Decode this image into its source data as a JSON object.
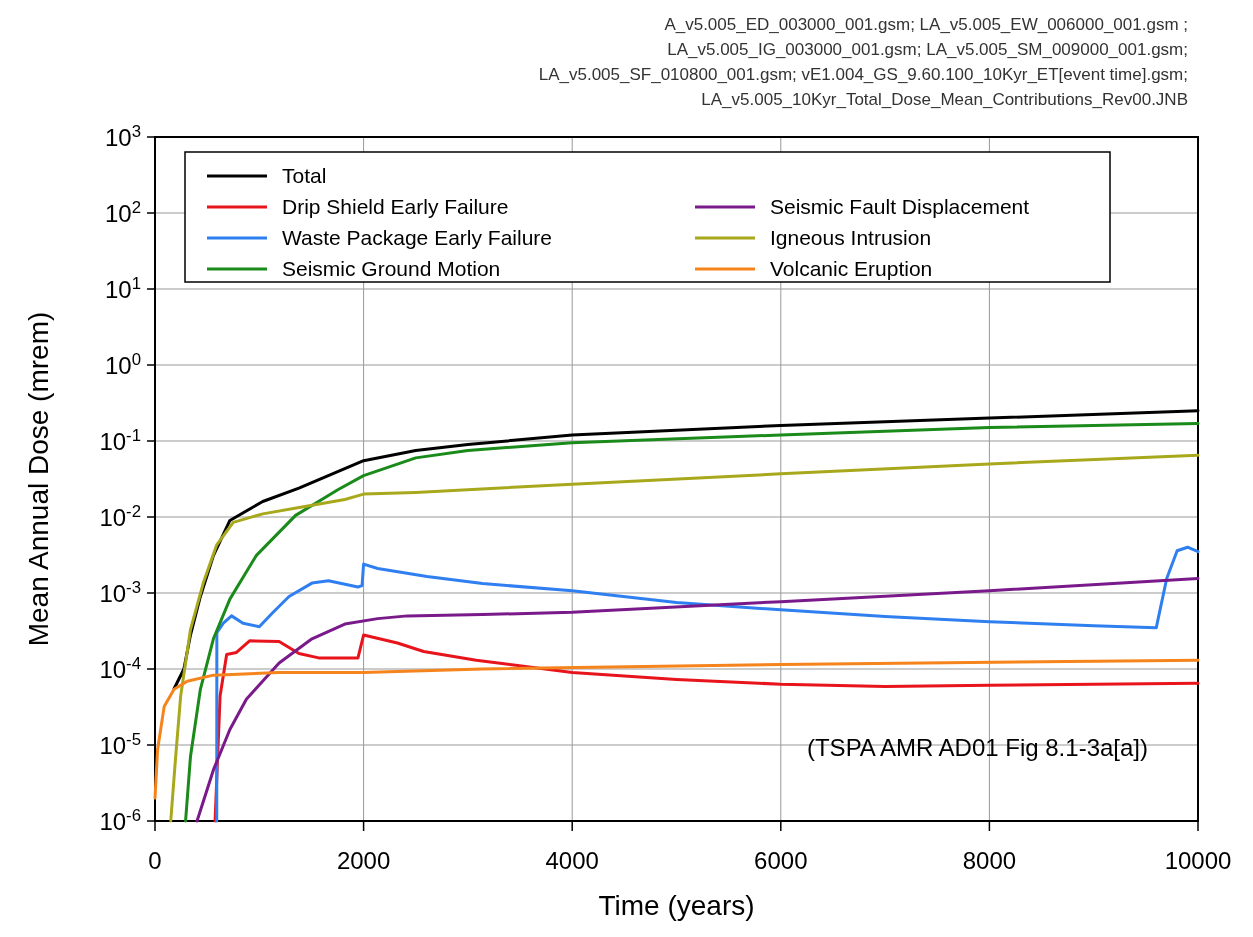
{
  "chart_data": {
    "type": "line",
    "xlabel": "Time (years)",
    "ylabel": "Mean Annual Dose (mrem)",
    "annotations": [
      "A_v5.005_ED_003000_001.gsm; LA_v5.005_EW_006000_001.gsm ;",
      "LA_v5.005_IG_003000_001.gsm; LA_v5.005_SM_009000_001.gsm;",
      "LA_v5.005_SF_010800_001.gsm; vE1.004_GS_9.60.100_10Kyr_ET[event time].gsm;",
      "LA_v5.005_10Kyr_Total_Dose_Mean_Contributions_Rev00.JNB",
      "(TSPA AMR AD01 Fig 8.1-3a[a])"
    ],
    "xlim": [
      0,
      10000
    ],
    "xticks": [
      0,
      2000,
      4000,
      6000,
      8000,
      10000
    ],
    "ylim": [
      1e-06,
      1000
    ],
    "log": true,
    "yticks": [
      {
        "value": 1e-06,
        "label": "10$^{-6}$"
      },
      {
        "value": 1e-05,
        "label": "10$^{-5}$"
      },
      {
        "value": 0.0001,
        "label": "10$^{-4}$"
      },
      {
        "value": 0.001,
        "label": "10$^{-3}$"
      },
      {
        "value": 0.01,
        "label": "10$^{-2}$"
      },
      {
        "value": 0.1,
        "label": "10$^{-1}$"
      },
      {
        "value": 1,
        "label": "10$^{0}$"
      },
      {
        "value": 10,
        "label": "10$^{1}$"
      },
      {
        "value": 100,
        "label": "10$^{2}$"
      },
      {
        "value": 1000,
        "label": "10$^{3}$"
      }
    ],
    "grid": true,
    "legend": "top left",
    "line_style": "solid",
    "marker": "none",
    "series": [
      {
        "name": "Total",
        "color": "#000000",
        "x": [
          183,
          277,
          340,
          435,
          560,
          718,
          1033,
          1380,
          2000,
          2500,
          3000,
          4000,
          6000,
          8000,
          10000
        ],
        "values": [
          5.5e-05,
          0.0001,
          0.00028,
          0.0009,
          0.0031,
          0.009,
          0.016,
          0.024,
          0.055,
          0.075,
          0.09,
          0.12,
          0.16,
          0.2,
          0.25
        ]
      },
      {
        "name": "Drip Shield Early Failure",
        "color": "#e8141c",
        "x": [
          576,
          624,
          687,
          781,
          907,
          1190,
          1380,
          1569,
          1946,
          2000,
          2324,
          2576,
          3080,
          4000,
          5000,
          6000,
          7000,
          8000,
          9000,
          10000
        ],
        "values": [
          1e-06,
          4.4e-05,
          0.000155,
          0.000165,
          0.000235,
          0.00023,
          0.00016,
          0.00014,
          0.00014,
          0.00028,
          0.00022,
          0.00017,
          0.00013,
          9e-05,
          7.3e-05,
          6.3e-05,
          5.9e-05,
          6.1e-05,
          6.3e-05,
          6.5e-05
        ]
      },
      {
        "name": "Waste Package Early Failure",
        "color": "#2f7ff0",
        "x": [
          592,
          593,
          655,
          734,
          844,
          1000,
          1128,
          1285,
          1505,
          1663,
          1946,
          1985,
          2000,
          2135,
          2608,
          3140,
          4000,
          5000,
          6000,
          7000,
          8000,
          9000,
          9600,
          9700,
          9800,
          9900,
          10000
        ],
        "values": [
          1e-06,
          0.0003,
          0.0004,
          0.0005,
          0.0004,
          0.00036,
          0.00055,
          0.0009,
          0.00135,
          0.00145,
          0.0012,
          0.00125,
          0.0024,
          0.0021,
          0.00165,
          0.00133,
          0.00107,
          0.00075,
          0.0006,
          0.00049,
          0.00042,
          0.00037,
          0.00035,
          0.00155,
          0.0036,
          0.004,
          0.0035
        ]
      },
      {
        "name": "Seismic Ground Motion",
        "color": "#1a8a1a",
        "x": [
          293,
          340,
          435,
          560,
          718,
          970,
          1348,
          1757,
          2000,
          2500,
          3000,
          4000,
          6000,
          8000,
          10000
        ],
        "values": [
          1e-06,
          7e-06,
          5.4e-05,
          0.00025,
          0.00083,
          0.0031,
          0.0105,
          0.023,
          0.035,
          0.06,
          0.075,
          0.095,
          0.12,
          0.15,
          0.17
        ]
      },
      {
        "name": "Seismic Fault Displacement",
        "color": "#7a1a8a",
        "x": [
          403,
          560,
          718,
          876,
          1190,
          1505,
          1820,
          2135,
          2419,
          3140,
          4000,
          6000,
          8000,
          10000
        ],
        "values": [
          1e-06,
          4.7e-06,
          1.6e-05,
          4e-05,
          0.00012,
          0.00025,
          0.00039,
          0.00046,
          0.0005,
          0.00052,
          0.00056,
          0.00077,
          0.00107,
          0.00155
        ]
      },
      {
        "name": "Igneous Intrusion",
        "color": "#a8a81c",
        "x": [
          151,
          198,
          246,
          340,
          466,
          592,
          750,
          1033,
          1410,
          1820,
          2000,
          2500,
          4000,
          6000,
          8000,
          10000
        ],
        "values": [
          1e-06,
          7e-06,
          4.4e-05,
          0.00033,
          0.0014,
          0.0043,
          0.0085,
          0.011,
          0.0135,
          0.017,
          0.02,
          0.021,
          0.027,
          0.037,
          0.05,
          0.065
        ]
      },
      {
        "name": "Volcanic Eruption",
        "color": "#f5841c",
        "x": [
          0,
          25,
          88,
          183,
          309,
          560,
          1190,
          2000,
          3140,
          6000,
          10000
        ],
        "values": [
          2e-06,
          8.7e-06,
          3.2e-05,
          5.4e-05,
          6.9e-05,
          8.3e-05,
          9e-05,
          9e-05,
          0.0001,
          0.000115,
          0.00013
        ]
      }
    ]
  }
}
